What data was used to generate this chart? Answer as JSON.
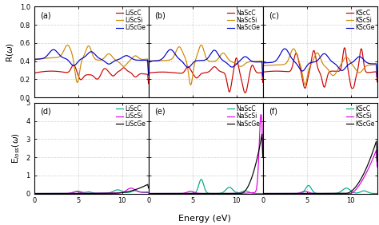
{
  "xlabel": "Energy (eV)",
  "ylabel_top": "R($\\omega$)",
  "ylabel_bottom": "E$_{loss}$($\\omega$)",
  "xmax": 13.0,
  "R_ylim": [
    0,
    1.0
  ],
  "E_ylim": [
    0,
    5.0
  ],
  "R_yticks": [
    0,
    0.2,
    0.4,
    0.6,
    0.8,
    1.0
  ],
  "E_yticks": [
    0,
    1,
    2,
    3,
    4,
    5
  ],
  "xticks": [
    0,
    5,
    10
  ],
  "colors": {
    "C": "#cc0000",
    "Si": "#cc8800",
    "Ge": "#0000cc",
    "C_loss": "#00aa88",
    "Si_loss": "#dd00dd",
    "Ge_loss": "#000000"
  },
  "alkali": [
    "Li",
    "Na",
    "K"
  ],
  "bg_color": "#ffffff",
  "panel_bg": "#ffffff",
  "grid_color": "#aaaaaa",
  "legend_fontsize": 5.5,
  "tick_fontsize": 6,
  "label_fontsize": 7.5,
  "lw": 0.85
}
